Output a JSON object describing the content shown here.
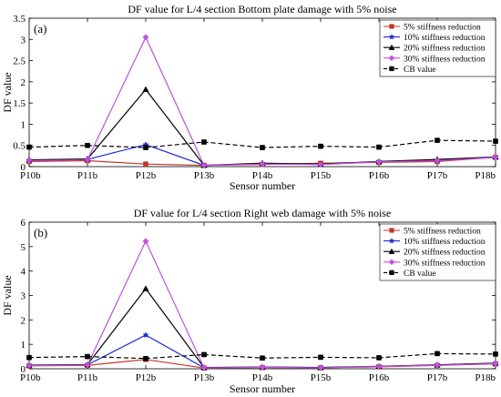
{
  "chart_data": [
    {
      "type": "line",
      "panel_label": "(a)",
      "title": "DF value  for L/4 section Bottom plate damage with 5% noise",
      "xlabel": "Sensor number",
      "ylabel": "DF value",
      "categories": [
        "P10b",
        "P11b",
        "P12b",
        "P13b",
        "P14b",
        "P15b",
        "P16b",
        "P17b",
        "P18b"
      ],
      "ylim": [
        0,
        3.5
      ],
      "yticks": [
        "0",
        "0.5",
        "1",
        "1.5",
        "2",
        "2.5",
        "3",
        "3.5"
      ],
      "legend_position": "top-right",
      "grid": false,
      "series": [
        {
          "name": "5% stiffness reduction",
          "color": "#c0392b",
          "marker": "square",
          "values": [
            0.12,
            0.14,
            0.06,
            0.03,
            0.05,
            0.08,
            0.1,
            0.12,
            0.22
          ]
        },
        {
          "name": "10% stiffness reduction",
          "color": "#1f2bd6",
          "marker": "star",
          "values": [
            0.15,
            0.17,
            0.52,
            0.03,
            0.07,
            0.05,
            0.12,
            0.15,
            0.22
          ]
        },
        {
          "name": "20% stiffness reduction",
          "color": "#000000",
          "marker": "triangle",
          "values": [
            0.16,
            0.18,
            1.82,
            0.03,
            0.08,
            0.06,
            0.12,
            0.17,
            0.23
          ]
        },
        {
          "name": "30% stiffness reduction",
          "color": "#c34fe0",
          "marker": "diamond",
          "values": [
            0.14,
            0.16,
            3.05,
            0.03,
            0.06,
            0.05,
            0.11,
            0.14,
            0.22
          ]
        },
        {
          "name": "CB value",
          "color": "#000000",
          "marker": "square",
          "dashed": true,
          "values": [
            0.46,
            0.5,
            0.45,
            0.58,
            0.45,
            0.48,
            0.46,
            0.62,
            0.6
          ]
        }
      ]
    },
    {
      "type": "line",
      "panel_label": "(b)",
      "title": "DF value  for L/4 section Right web damage with 5% noise",
      "xlabel": "Sensor number",
      "ylabel": "DF value",
      "categories": [
        "P10b",
        "P11b",
        "P12b",
        "P13b",
        "P14b",
        "P15b",
        "P16b",
        "P17b",
        "P18b"
      ],
      "ylim": [
        0,
        6
      ],
      "yticks": [
        "0",
        "1",
        "2",
        "3",
        "4",
        "5",
        "6"
      ],
      "legend_position": "top-right",
      "grid": false,
      "series": [
        {
          "name": "5% stiffness reduction",
          "color": "#c0392b",
          "marker": "square",
          "values": [
            0.12,
            0.14,
            0.38,
            0.03,
            0.05,
            0.04,
            0.08,
            0.14,
            0.2
          ]
        },
        {
          "name": "10% stiffness reduction",
          "color": "#1f2bd6",
          "marker": "star",
          "values": [
            0.14,
            0.16,
            1.38,
            0.04,
            0.06,
            0.05,
            0.1,
            0.15,
            0.22
          ]
        },
        {
          "name": "20% stiffness reduction",
          "color": "#000000",
          "marker": "triangle",
          "values": [
            0.15,
            0.17,
            3.28,
            0.05,
            0.07,
            0.05,
            0.1,
            0.16,
            0.23
          ]
        },
        {
          "name": "30% stiffness reduction",
          "color": "#c34fe0",
          "marker": "diamond",
          "values": [
            0.13,
            0.15,
            5.22,
            0.04,
            0.06,
            0.04,
            0.09,
            0.14,
            0.21
          ]
        },
        {
          "name": "CB value",
          "color": "#000000",
          "marker": "square",
          "dashed": true,
          "values": [
            0.46,
            0.5,
            0.42,
            0.58,
            0.44,
            0.47,
            0.45,
            0.62,
            0.6
          ]
        }
      ]
    }
  ]
}
